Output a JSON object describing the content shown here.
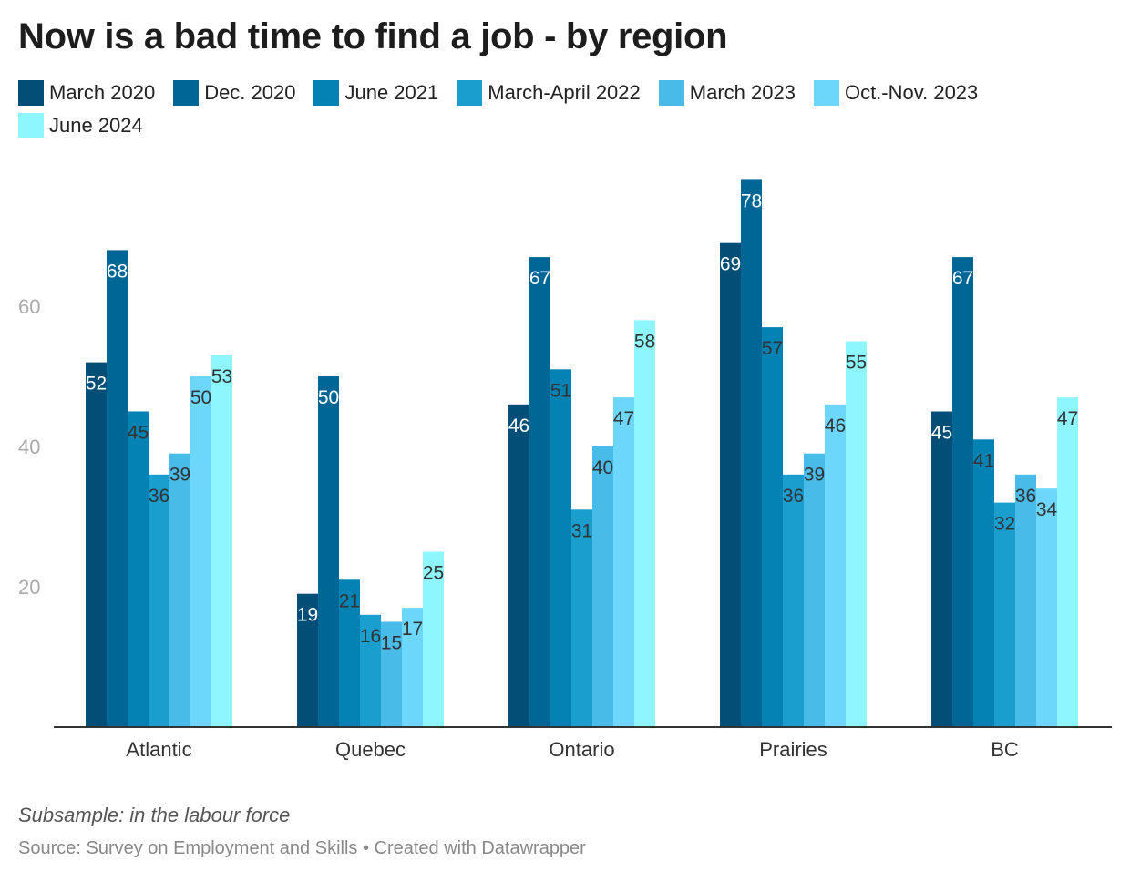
{
  "chart_data": {
    "type": "bar",
    "title": "Now is a bad time to find a job - by region",
    "xlabel": "",
    "ylabel": "",
    "categories": [
      "Atlantic",
      "Quebec",
      "Ontario",
      "Prairies",
      "BC"
    ],
    "series": [
      {
        "name": "March 2020",
        "color": "#024e77",
        "values": [
          52,
          19,
          46,
          69,
          45
        ]
      },
      {
        "name": "Dec. 2020",
        "color": "#006695",
        "values": [
          68,
          50,
          67,
          78,
          67
        ]
      },
      {
        "name": "June 2021",
        "color": "#0382b3",
        "values": [
          45,
          21,
          51,
          57,
          41
        ]
      },
      {
        "name": "March-April 2022",
        "color": "#1a9ece",
        "values": [
          36,
          16,
          31,
          36,
          32
        ]
      },
      {
        "name": "March 2023",
        "color": "#48bbe8",
        "values": [
          39,
          15,
          40,
          39,
          36
        ]
      },
      {
        "name": "Oct.-Nov. 2023",
        "color": "#6dd6fb",
        "values": [
          50,
          17,
          47,
          46,
          34
        ]
      },
      {
        "name": "June 2024",
        "color": "#8ef6ff",
        "values": [
          53,
          25,
          58,
          55,
          47
        ]
      }
    ],
    "yticks": [
      20,
      40,
      60
    ],
    "ylim": [
      0,
      82
    ],
    "grid": false,
    "legend": "top",
    "notes": "Subsample: in the labour force",
    "source": "Source: Survey on Employment and Skills • Created with Datawrapper"
  }
}
